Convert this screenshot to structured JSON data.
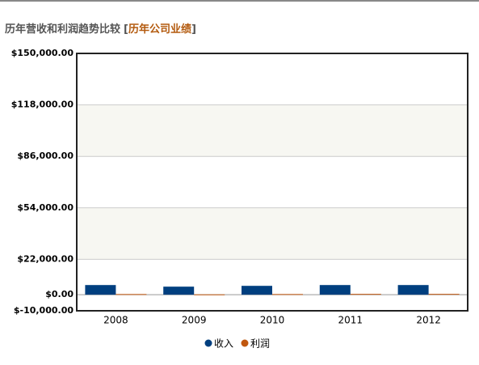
{
  "chart_data": {
    "type": "bar",
    "title": "历年营收和利润趋势比较",
    "title_link": "历年公司业绩",
    "categories": [
      "2008",
      "2009",
      "2010",
      "2011",
      "2012"
    ],
    "series": [
      {
        "name": "收入",
        "color": "#003f7f",
        "values": [
          6000,
          5000,
          5500,
          6000,
          6000
        ]
      },
      {
        "name": "利润",
        "color": "#c0570f",
        "values": [
          400,
          200,
          400,
          500,
          500
        ]
      }
    ],
    "ylim": [
      -10000,
      150000
    ],
    "yticks": [
      {
        "value": -10000,
        "label": "$-10,000.00"
      },
      {
        "value": 0,
        "label": "$0.00"
      },
      {
        "value": 22000,
        "label": "$22,000.00"
      },
      {
        "value": 54000,
        "label": "$54,000.00"
      },
      {
        "value": 86000,
        "label": "$86,000.00"
      },
      {
        "value": 118000,
        "label": "$118,000.00"
      },
      {
        "value": 150000,
        "label": "$150,000.00"
      }
    ],
    "grid": true
  }
}
